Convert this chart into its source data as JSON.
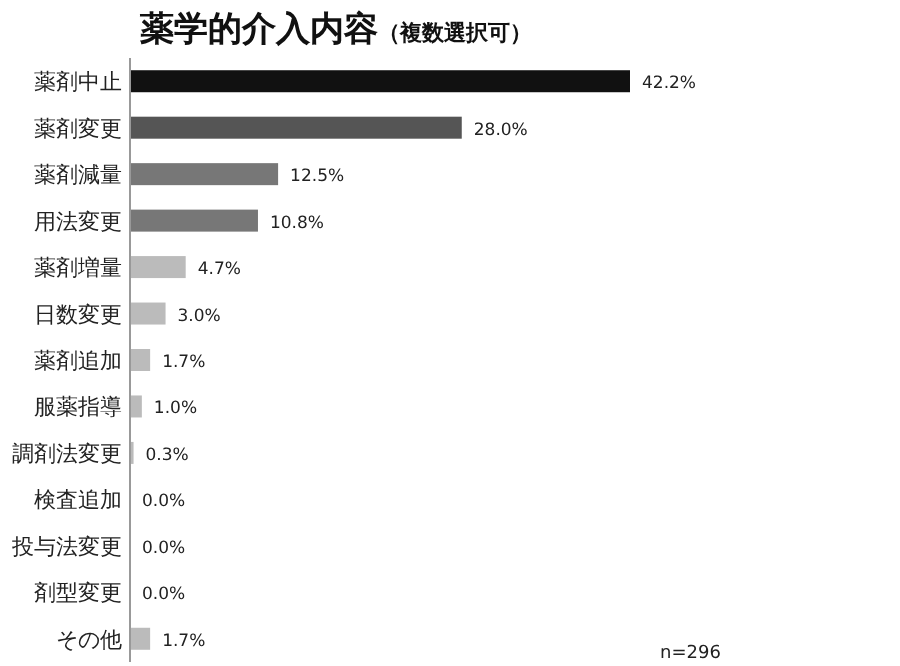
{
  "chart_data": {
    "type": "bar",
    "orientation": "horizontal",
    "title": "薬学的介入内容",
    "subtitle": "（複数選択可）",
    "categories": [
      "薬剤中止",
      "薬剤変更",
      "薬剤減量",
      "用法変更",
      "薬剤増量",
      "日数変更",
      "薬剤追加",
      "服薬指導",
      "調剤法変更",
      "検査追加",
      "投与法変更",
      "剤型変更",
      "その他"
    ],
    "values": [
      42.2,
      28.0,
      12.5,
      10.8,
      4.7,
      3.0,
      1.7,
      1.0,
      0.3,
      0.0,
      0.0,
      0.0,
      1.7
    ],
    "colors": [
      "#111111",
      "#555555",
      "#777777",
      "#777777",
      "#bbbbbb",
      "#bbbbbb",
      "#bbbbbb",
      "#bbbbbb",
      "#bbbbbb",
      "#bbbbbb",
      "#bbbbbb",
      "#bbbbbb",
      "#bbbbbb"
    ],
    "value_labels": [
      "42.2%",
      "28.0%",
      "12.5%",
      "10.8%",
      "4.7%",
      "3.0%",
      "1.7%",
      "1.0%",
      "0.3%",
      "0.0%",
      "0.0%",
      "0.0%",
      "1.7%"
    ],
    "annotations": [
      "n=296"
    ]
  }
}
